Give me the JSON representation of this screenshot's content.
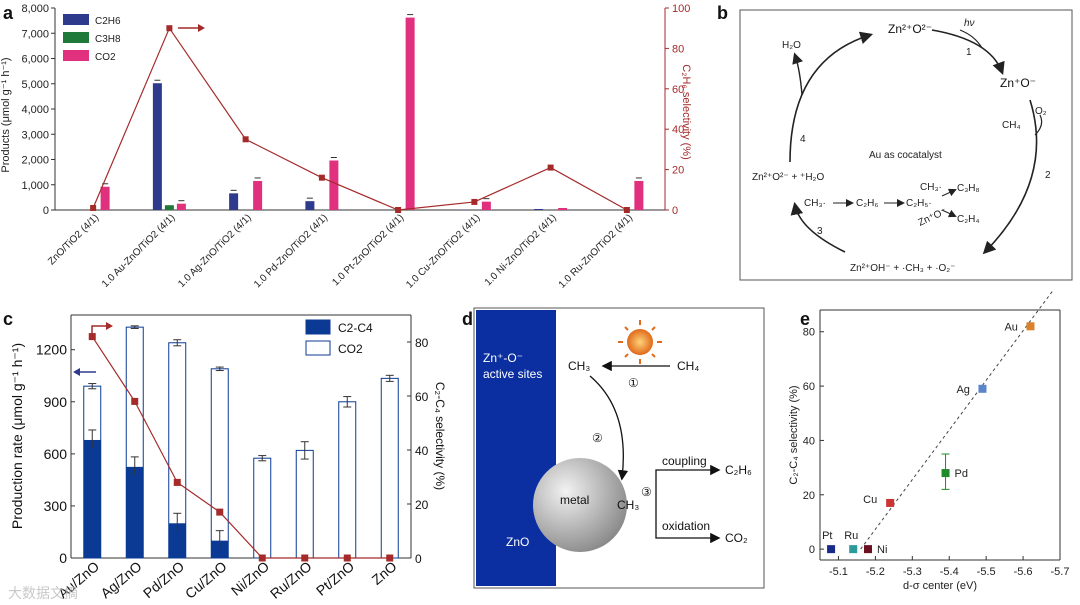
{
  "panels": {
    "a": "a",
    "b": "b",
    "c": "c",
    "d": "d",
    "e": "e"
  },
  "colors": {
    "c2h6": "#2e3a8c",
    "c3h8": "#1f7a3a",
    "co2": "#e0307e",
    "selectivity": "#a52a2a",
    "c_bar": "#0b3a94"
  },
  "chart_data": [
    {
      "id": "a",
      "type": "bar",
      "categories": [
        "ZnO/TiO2 (4/1)",
        "1.0 Au-ZnO/TiO2 (4/1)",
        "1.0 Ag-ZnO/TiO2 (4/1)",
        "1.0 Pd-ZnO/TiO2 (4/1)",
        "1.0 Pt-ZnO/TiO2 (4/1)",
        "1.0 Cu-ZnO/TiO2 (4/1)",
        "1.0 Ni-ZnO/TiO2 (4/1)",
        "1.0 Ru-ZnO/TiO2 (4/1)"
      ],
      "series": [
        {
          "name": "C2H6",
          "values": [
            0,
            5020,
            660,
            350,
            0,
            20,
            40,
            0
          ]
        },
        {
          "name": "C3H8",
          "values": [
            0,
            190,
            0,
            0,
            0,
            0,
            0,
            0
          ]
        },
        {
          "name": "CO2",
          "values": [
            920,
            250,
            1150,
            1960,
            7620,
            330,
            80,
            1150
          ]
        }
      ],
      "selectivity": [
        1,
        90,
        35,
        16,
        0,
        4,
        21,
        0
      ],
      "ylim": [
        0,
        8000
      ],
      "y2lim": [
        0,
        100
      ],
      "yticks": [
        "0",
        "1,000",
        "2,000",
        "3,000",
        "4,000",
        "5,000",
        "6,000",
        "7,000",
        "8,000"
      ],
      "y2ticks": [
        "0",
        "20",
        "40",
        "60",
        "80",
        "100"
      ],
      "ylabel": "Products (μmol g⁻¹ h⁻¹)",
      "y2label": "C₂H₆ selectivity (%)",
      "legend": [
        "C2H6",
        "C3H8",
        "CO2"
      ]
    },
    {
      "id": "c",
      "type": "bar",
      "categories": [
        "Au/ZnO",
        "Ag/ZnO",
        "Pd/ZnO",
        "Cu/ZnO",
        "Ni/ZnO",
        "Ru/ZnO",
        "Pt/ZnO",
        "ZnO"
      ],
      "series": [
        {
          "name": "C2-C4",
          "values": [
            680,
            525,
            200,
            100,
            0,
            0,
            0,
            0
          ]
        },
        {
          "name": "CO2",
          "values": [
            990,
            1330,
            1240,
            1090,
            575,
            620,
            900,
            1035
          ]
        }
      ],
      "errors": [
        30,
        15,
        35,
        20,
        30,
        100,
        60,
        35
      ],
      "selectivity": [
        82,
        58,
        28,
        17,
        0,
        0,
        0,
        0
      ],
      "ylim": [
        0,
        1400
      ],
      "y2lim": [
        0,
        90
      ],
      "yticks": [
        "0",
        "300",
        "600",
        "900",
        "1200"
      ],
      "y2ticks": [
        "0",
        "20",
        "40",
        "60",
        "80"
      ],
      "ylabel": "Production rate (μmol g⁻¹ h⁻¹)",
      "y2label": "C₂-C₄ selectivity (%)",
      "legend": [
        "C2-C4",
        "CO2"
      ]
    },
    {
      "id": "e",
      "type": "scatter",
      "points": [
        {
          "label": "Au",
          "x": -5.62,
          "y": 82,
          "color": "#d9822b"
        },
        {
          "label": "Ag",
          "x": -5.49,
          "y": 59,
          "color": "#5a86c9"
        },
        {
          "label": "Pd",
          "x": -5.39,
          "y": 28,
          "color": "#1f8a2a"
        },
        {
          "label": "Cu",
          "x": -5.24,
          "y": 17,
          "color": "#cc3333"
        },
        {
          "label": "Pt",
          "x": -5.08,
          "y": 0,
          "color": "#1a2a8c"
        },
        {
          "label": "Ru",
          "x": -5.14,
          "y": 0,
          "color": "#2a9a9a"
        },
        {
          "label": "Ni",
          "x": -5.18,
          "y": 0,
          "color": "#6a1020"
        }
      ],
      "fit": [
        [
          -5.16,
          0
        ],
        [
          -5.68,
          95
        ]
      ],
      "xlim": [
        -5.05,
        -5.7
      ],
      "ylim": [
        -4,
        88
      ],
      "xticks": [
        "-5.1",
        "-5.2",
        "-5.3",
        "-5.4",
        "-5.5",
        "-5.6",
        "-5.7"
      ],
      "yticks": [
        "0",
        "20",
        "40",
        "60",
        "80"
      ],
      "xlabel": "d-σ center (eV)",
      "ylabel": "C₂-C₄ selectivity (%)"
    }
  ],
  "diagram_b": {
    "top": "Zn²⁺O²⁻",
    "hv": "hν",
    "step1": "1",
    "right": "Zn⁺O⁻",
    "o2": "O₂",
    "ch4": "CH₄",
    "step2": "2",
    "center": "Au as cocatalyst",
    "left": "Zn²⁺O²⁻ + ⁺H₂O",
    "ch3": "CH₃·",
    "c2h6": "C₂H₆",
    "c2h5": "C₂H₅·",
    "ch3b": "CH₃·",
    "c3h8": "C₃H₈",
    "zno": "Zn⁺O⁻",
    "c2h4": "C₂H₄",
    "step3": "3",
    "bottom": "Zn²⁺OH⁻ + ·CH₃ + ·O₂⁻",
    "step4": "4",
    "h2o": "H₂O"
  },
  "diagram_d": {
    "active": "Zn⁺-O⁻",
    "active2": "active sites",
    "ch3a": "CH₃",
    "ch4": "CH₄",
    "s1": "①",
    "s2": "②",
    "metal": "metal",
    "ch3b": "CH₃",
    "s3": "③",
    "coupling": "coupling",
    "c2h6": "C₂H₆",
    "oxidation": "oxidation",
    "co2": "CO₂",
    "zno": "ZnO"
  },
  "watermark": "大数据文摘"
}
